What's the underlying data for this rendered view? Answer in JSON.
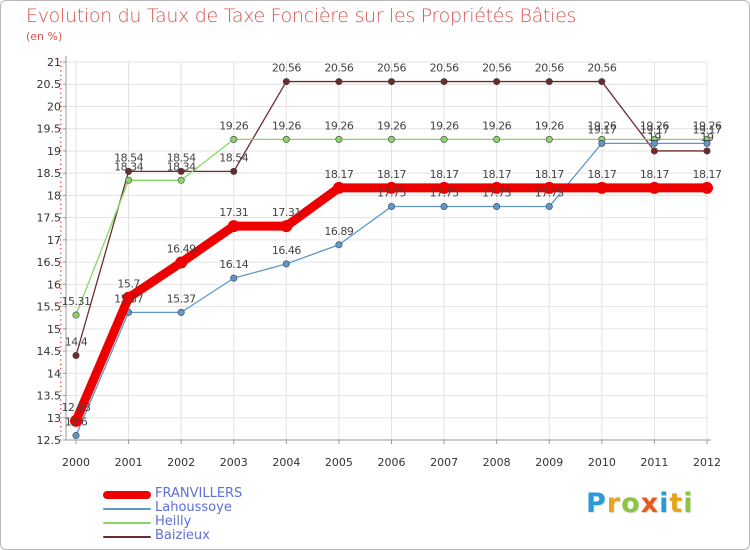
{
  "chart_data": {
    "type": "line",
    "title": "Evolution du Taux de Taxe Foncière sur les Propriétés Bâties",
    "ylabel": "(en %)",
    "xlabel": "",
    "ylim": [
      12.5,
      21
    ],
    "yticks": [
      "12.5",
      "13",
      "13.5",
      "14",
      "14.5",
      "15",
      "15.5",
      "16",
      "16.5",
      "17",
      "17.5",
      "18",
      "18.5",
      "19",
      "19.5",
      "20",
      "20.5",
      "21"
    ],
    "x": [
      "2000",
      "2001",
      "2002",
      "2003",
      "2004",
      "2005",
      "2006",
      "2007",
      "2008",
      "2009",
      "2010",
      "2011",
      "2012"
    ],
    "series": [
      {
        "name": "Baizieux",
        "color": "#6e2b2f",
        "values": [
          14.4,
          18.54,
          18.54,
          18.54,
          20.56,
          20.56,
          20.56,
          20.56,
          20.56,
          20.56,
          20.56,
          19,
          19
        ],
        "labels": [
          "14.4",
          "18.54",
          "18.54",
          "18.54",
          "20.56",
          "20.56",
          "20.56",
          "20.56",
          "20.56",
          "20.56",
          "20.56",
          "19",
          "19"
        ]
      },
      {
        "name": "Heilly",
        "color": "#88d665",
        "values": [
          15.31,
          18.34,
          18.34,
          19.26,
          19.26,
          19.26,
          19.26,
          19.26,
          19.26,
          19.26,
          19.26,
          19.26,
          19.26
        ],
        "labels": [
          "15.31",
          "18.34",
          "18.34",
          "19.26",
          "19.26",
          "19.26",
          "19.26",
          "19.26",
          "19.26",
          "19.26",
          "19.26",
          "19.26",
          "19.26"
        ]
      },
      {
        "name": "Lahoussoye",
        "color": "#5d97cc",
        "values": [
          12.6,
          15.37,
          15.37,
          16.14,
          16.46,
          16.89,
          17.75,
          17.75,
          17.75,
          17.75,
          19.17,
          19.17,
          19.17
        ],
        "labels": [
          "12.6",
          "15.37",
          "15.37",
          "16.14",
          "16.46",
          "16.89",
          "17.75",
          "17.75",
          "17.75",
          "17.75",
          "19.17",
          "19.17",
          "19.17"
        ]
      },
      {
        "name": "FRANVILLERS",
        "color": "#ee0000",
        "values": [
          12.93,
          15.7,
          16.49,
          17.31,
          17.31,
          18.17,
          18.17,
          18.17,
          18.17,
          18.17,
          18.17,
          18.17,
          18.17
        ],
        "labels": [
          "12.93",
          "15.7",
          "16.49",
          "17.31",
          "17.31",
          "18.17",
          "18.17",
          "18.17",
          "18.17",
          "18.17",
          "18.17",
          "18.17",
          "18.17"
        ]
      }
    ],
    "legend_order": [
      "FRANVILLERS",
      "Lahoussoye",
      "Heilly",
      "Baizieux"
    ],
    "legend_position": "bottom-left"
  },
  "logo": {
    "letters": [
      "P",
      "r",
      "o",
      "x",
      "i",
      "t",
      "i"
    ],
    "colors": [
      "#2a9ad8",
      "#e8a51c",
      "#8cc63f",
      "#e85a1e",
      "#2a9ad8",
      "#e8a51c",
      "#8cc63f"
    ]
  }
}
